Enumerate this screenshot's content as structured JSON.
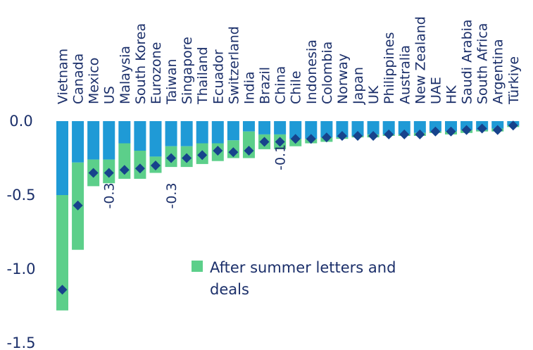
{
  "chart_data": {
    "type": "bar",
    "stacked": true,
    "categories": [
      "Vietnam",
      "Canada",
      "Mexico",
      "US",
      "Malaysia",
      "South Korea",
      "Eurozone",
      "Taiwan",
      "Singapore",
      "Thailand",
      "Ecuador",
      "Switzerland",
      "India",
      "Brazil",
      "China",
      "Chile",
      "Indonesia",
      "Colombia",
      "Norway",
      "Japan",
      "UK",
      "Philippines",
      "Australia",
      "New Zealand",
      "UAE",
      "HK",
      "Saudi Arabia",
      "South Africa",
      "Argentina",
      "Türkiye"
    ],
    "series": [
      {
        "color": "#1f9ad6",
        "values": [
          -0.5,
          -0.28,
          -0.26,
          -0.26,
          -0.15,
          -0.2,
          -0.24,
          -0.17,
          -0.17,
          -0.15,
          -0.15,
          -0.13,
          -0.07,
          -0.09,
          -0.09,
          -0.12,
          -0.12,
          -0.11,
          -0.11,
          -0.1,
          -0.09,
          -0.09,
          -0.09,
          -0.08,
          -0.07,
          -0.07,
          -0.06,
          -0.06,
          -0.05,
          -0.03
        ]
      },
      {
        "name": "After summer letters and deals",
        "color": "#5ccf8a",
        "values": [
          -0.78,
          -0.59,
          -0.18,
          -0.16,
          -0.24,
          -0.19,
          -0.11,
          -0.14,
          -0.14,
          -0.14,
          -0.12,
          -0.12,
          -0.18,
          -0.1,
          -0.1,
          -0.05,
          -0.03,
          -0.03,
          -0.01,
          -0.01,
          -0.02,
          -0.01,
          -0.01,
          -0.02,
          -0.01,
          -0.02,
          -0.02,
          -0.01,
          -0.02,
          -0.01
        ]
      },
      {
        "type": "scatter",
        "marker": "diamond",
        "color": "#17438c",
        "values": [
          -1.14,
          -0.57,
          -0.35,
          -0.35,
          -0.33,
          -0.32,
          -0.3,
          -0.25,
          -0.25,
          -0.23,
          -0.2,
          -0.21,
          -0.2,
          -0.14,
          -0.14,
          -0.12,
          -0.12,
          -0.11,
          -0.1,
          -0.1,
          -0.1,
          -0.09,
          -0.09,
          -0.09,
          -0.07,
          -0.07,
          -0.06,
          -0.05,
          -0.06,
          -0.03
        ]
      }
    ],
    "annotations": [
      {
        "text": "-0.3",
        "category": "US",
        "y": -0.45
      },
      {
        "text": "-0.3",
        "category": "Taiwan",
        "y": -0.45
      },
      {
        "text": "-0.1",
        "category": "China",
        "y": -0.19
      }
    ],
    "yticks": [
      "0.0",
      "-0.5",
      "-1.0",
      "-1.5"
    ],
    "ytick_values": [
      0.0,
      -0.5,
      -1.0,
      -1.5
    ],
    "ylim": [
      -1.5,
      0.0
    ],
    "grid": false,
    "legend_position": "bottom-center"
  }
}
